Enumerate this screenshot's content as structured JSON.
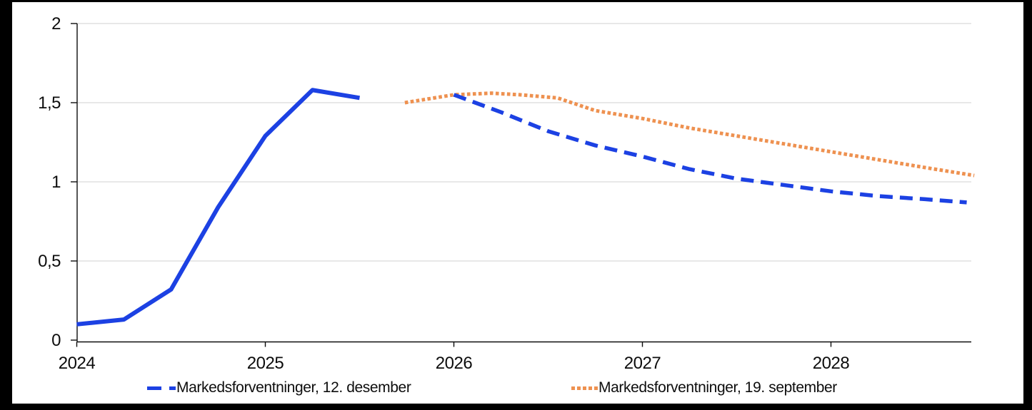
{
  "frame": {
    "color": "#000000"
  },
  "chart_data": {
    "type": "line",
    "title": "",
    "xlabel": "",
    "ylabel": "",
    "x_range": [
      2024,
      2028.78
    ],
    "y_range": [
      0,
      2
    ],
    "grid": "horizontal",
    "grid_color": "#d9d9d9",
    "axis_color": "#0d0d0d",
    "y_ticks": [
      {
        "value": 0,
        "label": "0"
      },
      {
        "value": 0.5,
        "label": "0,5"
      },
      {
        "value": 1,
        "label": "1"
      },
      {
        "value": 1.5,
        "label": "1,5"
      },
      {
        "value": 2,
        "label": "2"
      }
    ],
    "grid_values": [
      0.5,
      1,
      1.5,
      2
    ],
    "x_ticks": [
      {
        "value": 2024,
        "label": "2024"
      },
      {
        "value": 2025,
        "label": "2025"
      },
      {
        "value": 2026,
        "label": "2026"
      },
      {
        "value": 2027,
        "label": "2027"
      },
      {
        "value": 2028,
        "label": "2028"
      }
    ],
    "series": [
      {
        "name": "Markedsforventninger, 12. desember",
        "color": "#1c41e3",
        "segments": [
          {
            "style": "solid",
            "points": [
              [
                2024.0,
                0.1
              ],
              [
                2024.25,
                0.13
              ],
              [
                2024.5,
                0.32
              ],
              [
                2024.75,
                0.84
              ],
              [
                2025.0,
                1.29
              ],
              [
                2025.25,
                1.58
              ],
              [
                2025.5,
                1.53
              ]
            ]
          },
          {
            "style": "dashed",
            "points": [
              [
                2026.0,
                1.55
              ],
              [
                2026.25,
                1.44
              ],
              [
                2026.5,
                1.32
              ],
              [
                2026.75,
                1.23
              ],
              [
                2027.0,
                1.16
              ],
              [
                2027.25,
                1.08
              ],
              [
                2027.5,
                1.02
              ],
              [
                2027.75,
                0.98
              ],
              [
                2028.0,
                0.94
              ],
              [
                2028.25,
                0.91
              ],
              [
                2028.5,
                0.89
              ],
              [
                2028.72,
                0.87
              ]
            ]
          }
        ]
      },
      {
        "name": "Markedsforventninger, 19. september",
        "color": "#ee9150",
        "segments": [
          {
            "style": "dotted",
            "points": [
              [
                2025.74,
                1.5
              ],
              [
                2026.0,
                1.55
              ],
              [
                2026.2,
                1.56
              ],
              [
                2026.35,
                1.55
              ],
              [
                2026.55,
                1.53
              ],
              [
                2026.75,
                1.45
              ],
              [
                2027.0,
                1.4
              ],
              [
                2027.25,
                1.34
              ],
              [
                2027.5,
                1.29
              ],
              [
                2027.75,
                1.24
              ],
              [
                2028.0,
                1.19
              ],
              [
                2028.25,
                1.14
              ],
              [
                2028.5,
                1.09
              ],
              [
                2028.76,
                1.04
              ]
            ]
          }
        ]
      }
    ],
    "legend": [
      {
        "label": "Markedsforventninger, 12. desember",
        "style": "dashed"
      },
      {
        "label": "Markedsforventninger, 19. september",
        "style": "dotted"
      }
    ],
    "legend_position": "bottom"
  }
}
